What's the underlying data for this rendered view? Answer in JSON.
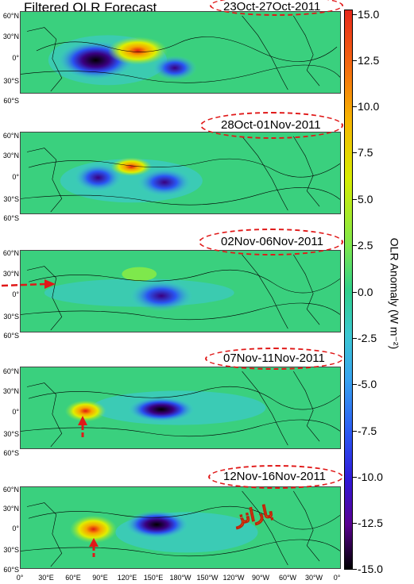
{
  "title": "Filtered OLR  Forecast",
  "panels": [
    {
      "date": "23Oct-27Oct-2011"
    },
    {
      "date": "28Oct-01Nov-2011"
    },
    {
      "date": "02Nov-06Nov-2011"
    },
    {
      "date": "07Nov-11Nov-2011"
    },
    {
      "date": "12Nov-16Nov-2011"
    }
  ],
  "lat_labels": [
    "60°N",
    "30°N",
    "0°",
    "30°S",
    "60°S"
  ],
  "lon_labels": [
    "0°",
    "30°E",
    "60°E",
    "90°E",
    "120°E",
    "150°E",
    "180°W",
    "150°W",
    "120°W",
    "90°W",
    "60°W",
    "30°W",
    "0°"
  ],
  "colorbar": {
    "label": "OLR Anomaly (W m⁻²)",
    "ticks": [
      "15.0",
      "12.5",
      "10.0",
      "7.5",
      "5.0",
      "2.5",
      "0.0",
      "-2.5",
      "-5.0",
      "-7.5",
      "-10.0",
      "-12.5",
      "-15.0"
    ]
  },
  "logo_text": "بارانز",
  "colors": {
    "annotation": "#e01818",
    "ocean_background": "#36d27a"
  }
}
